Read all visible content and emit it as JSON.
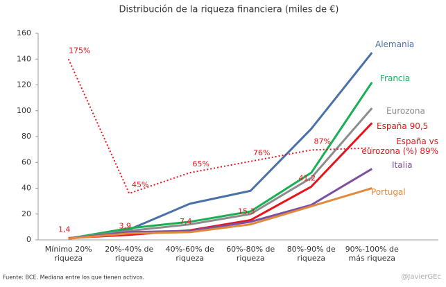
{
  "chart_data": {
    "type": "line",
    "title": "Distribución de la riqueza financiera (miles de €)",
    "categories": [
      "Mínimo 20% riqueza",
      "20%-40% de riqueza",
      "40%-60% de riqueza",
      "60%-80% de riqueza",
      "80%-90% de riqueza",
      "90%-100% de más riqueza"
    ],
    "series": [
      {
        "name": "Alemania",
        "color": "#4a70a8",
        "values": [
          1,
          8,
          28,
          38,
          86,
          145
        ]
      },
      {
        "name": "Francia",
        "color": "#1aaf54",
        "values": [
          1,
          9,
          14,
          22,
          52,
          122
        ]
      },
      {
        "name": "Eurozona",
        "color": "#8c8c8c",
        "values": [
          1,
          7,
          12,
          20,
          48,
          102
        ]
      },
      {
        "name": "España 90,5",
        "color": "#e8141b",
        "values": [
          1.4,
          3.9,
          7.4,
          15.3,
          41.2,
          90.5
        ],
        "value_labels": [
          "1,4",
          "3,9",
          "7,4",
          "15,3",
          "41,2",
          null
        ]
      },
      {
        "name": "España vs eurozona (%) 89%",
        "color": "#e8141b",
        "dotted": true,
        "axis": "y2",
        "values": [
          175,
          45,
          65,
          76,
          87,
          89
        ],
        "value_labels": [
          "175%",
          "45%",
          "65%",
          "76%",
          "87%",
          null
        ]
      },
      {
        "name": "Italia",
        "color": "#7d4fa0",
        "values": [
          1,
          6,
          7,
          14,
          27,
          55
        ]
      },
      {
        "name": "Portugal",
        "color": "#e08a3c",
        "values": [
          1,
          5,
          6,
          12,
          26,
          40
        ]
      }
    ],
    "ylim": [
      0,
      160
    ],
    "yticks": [
      0,
      20,
      40,
      60,
      80,
      100,
      120,
      140,
      160
    ],
    "y2lim": [
      0,
      200
    ],
    "source": "Fuente: BCE. Mediana entre los que tienen activos.",
    "watermark": "@JavierGEc"
  }
}
